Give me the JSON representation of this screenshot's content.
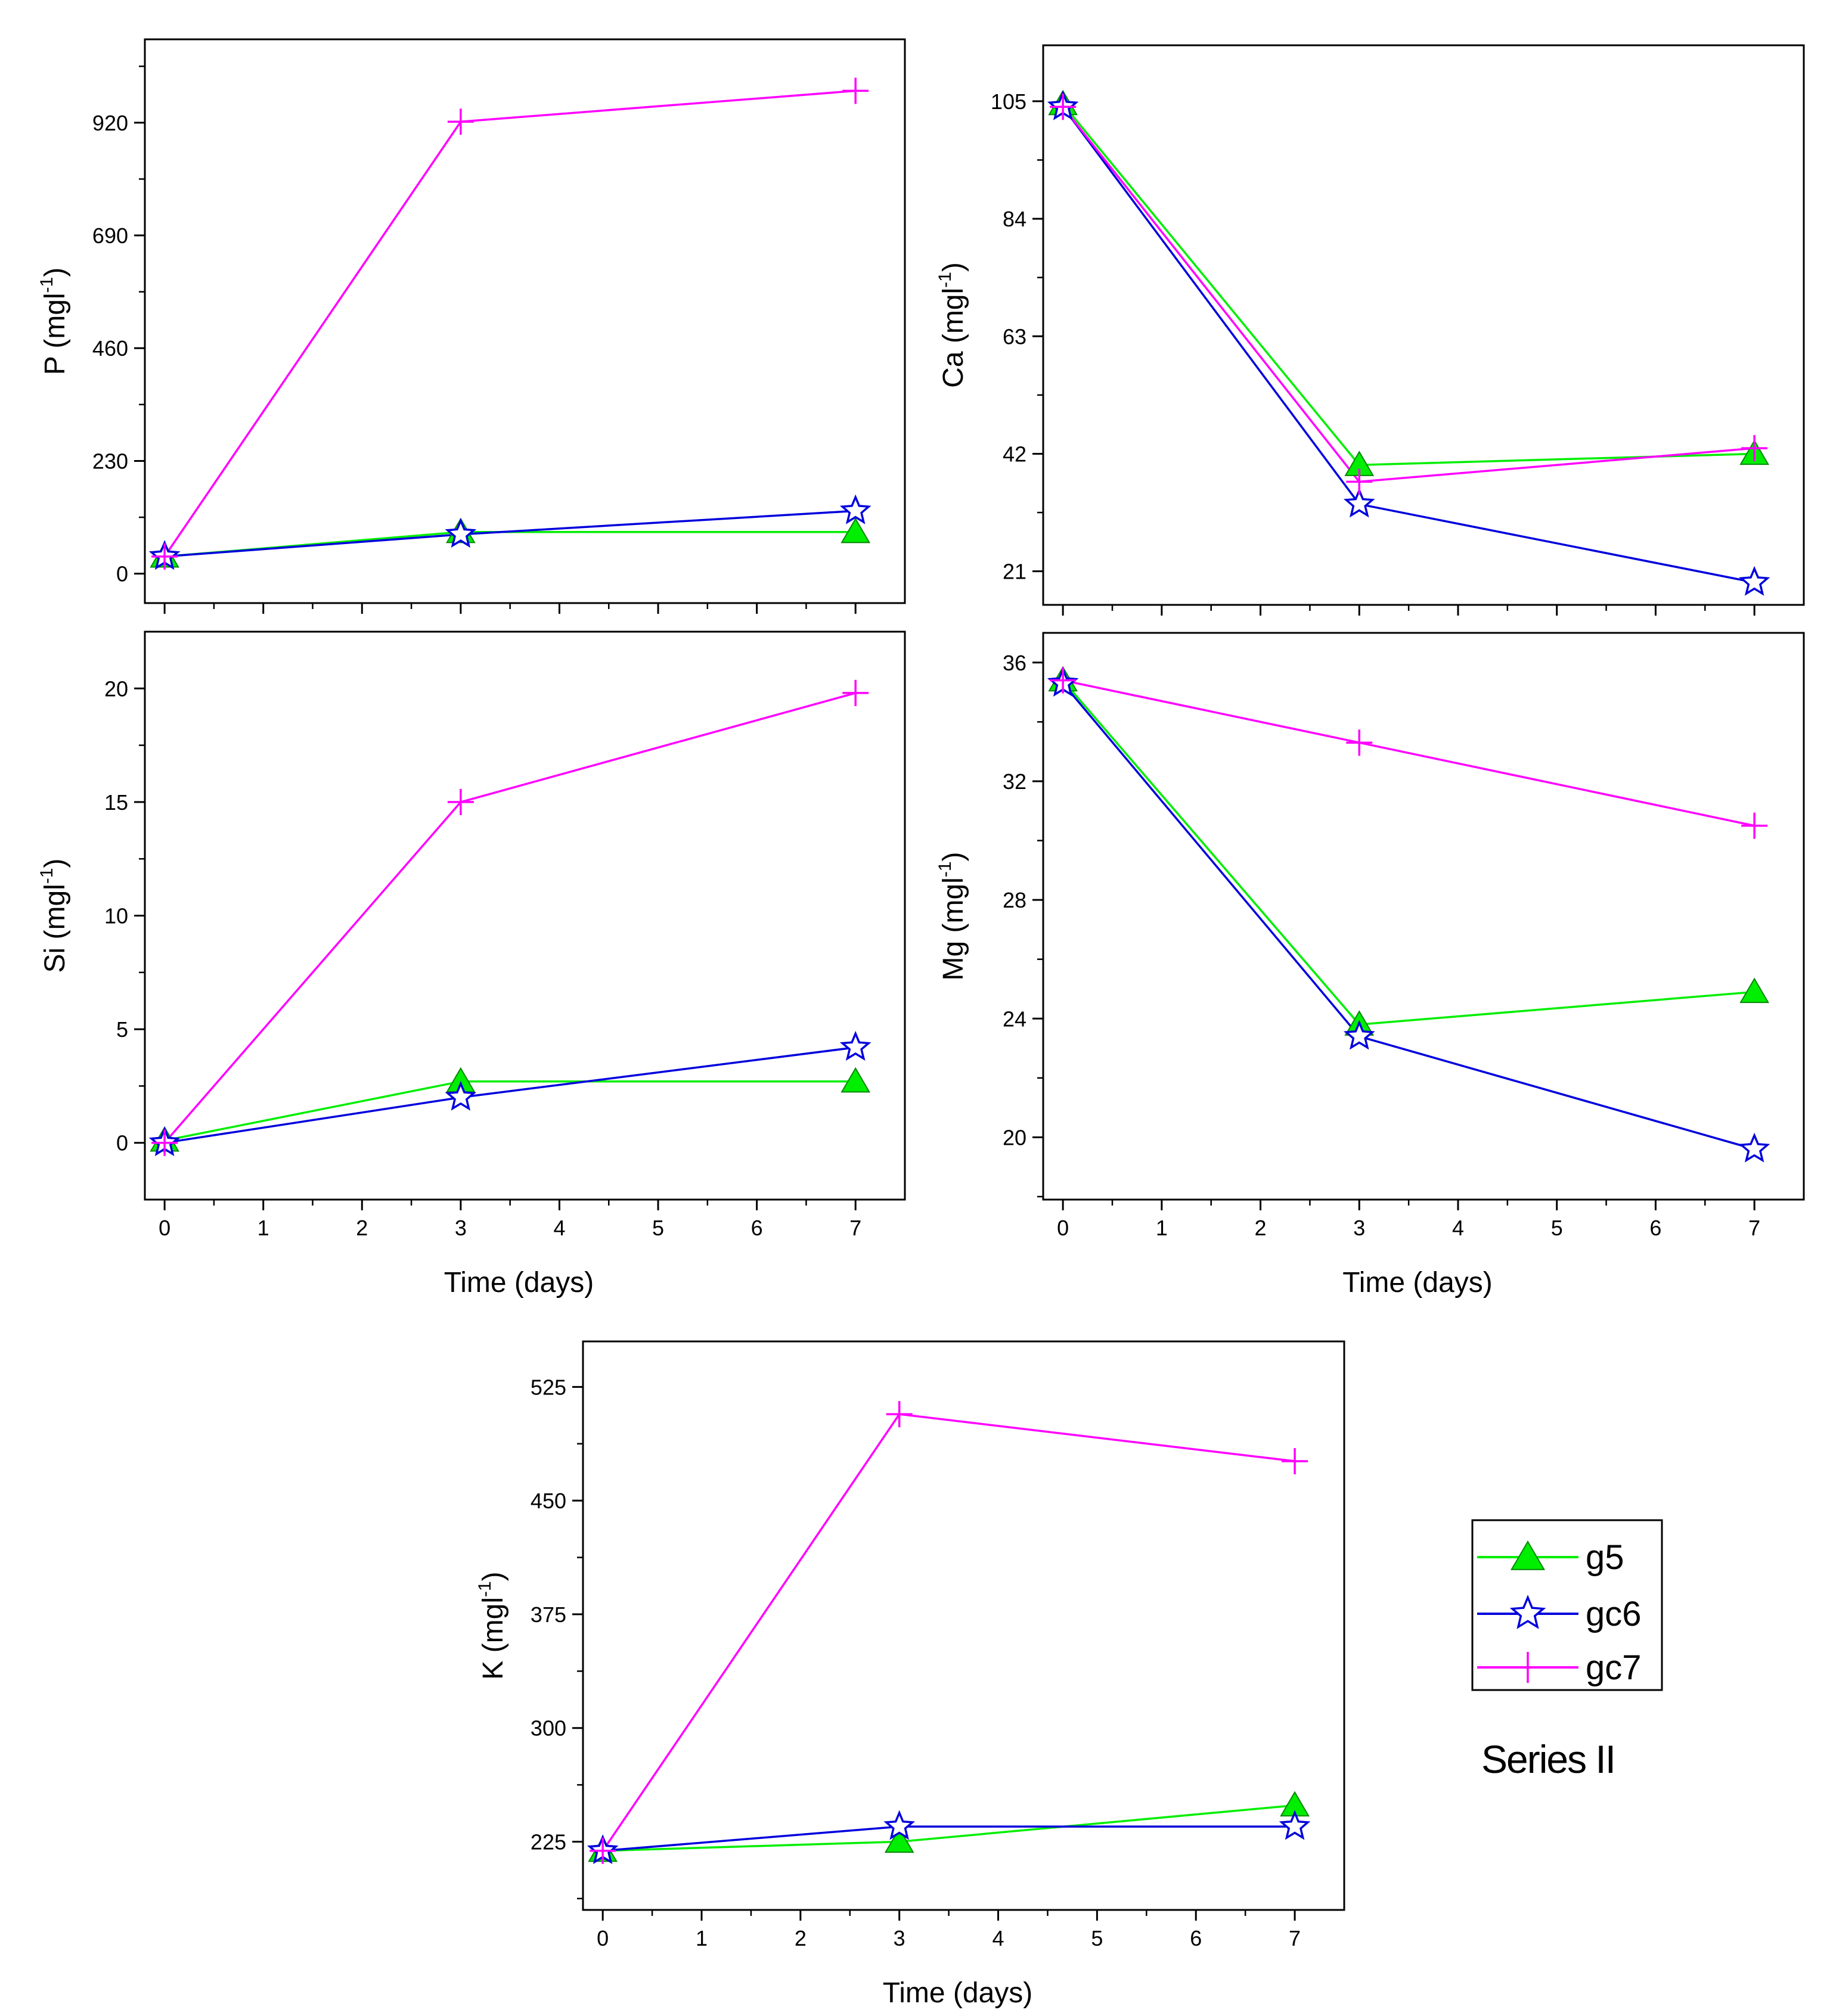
{
  "figure": {
    "series_label": "Series II",
    "legend": [
      {
        "key": "g5",
        "label": "g5"
      },
      {
        "key": "gc6",
        "label": "gc6"
      },
      {
        "key": "gc7",
        "label": "gc7"
      }
    ]
  },
  "styles": {
    "g5": {
      "color": "#00ee00",
      "marker": "triangle"
    },
    "gc6": {
      "color": "#0000dd",
      "marker": "star"
    },
    "gc7": {
      "color": "#ff00ff",
      "marker": "plus"
    }
  },
  "chart_data": [
    {
      "id": "P",
      "type": "line",
      "ylabel_base": "P (mgl",
      "ylabel_sup": "-1",
      "ylabel_close": ")",
      "xlabel": "",
      "x_ticks": [
        0,
        1,
        2,
        3,
        4,
        5,
        6,
        7
      ],
      "x_tick_labels": [],
      "xlim": [
        -0.2,
        7.5
      ],
      "y_ticks": [
        0,
        230,
        460,
        690,
        920
      ],
      "ylim": [
        -60,
        1090
      ],
      "x": [
        0,
        3,
        7
      ],
      "series": [
        {
          "name": "g5",
          "values": [
            35,
            85,
            85
          ]
        },
        {
          "name": "gc6",
          "values": [
            35,
            80,
            128
          ]
        },
        {
          "name": "gc7",
          "values": [
            35,
            922,
            985
          ]
        }
      ]
    },
    {
      "id": "Ca",
      "type": "line",
      "ylabel_base": "Ca (mgl",
      "ylabel_sup": "-1",
      "ylabel_close": ")",
      "xlabel": "",
      "x_ticks": [
        0,
        1,
        2,
        3,
        4,
        5,
        6,
        7
      ],
      "x_tick_labels": [],
      "xlim": [
        -0.2,
        7.5
      ],
      "y_ticks": [
        21,
        42,
        63,
        84,
        105
      ],
      "ylim": [
        15,
        115
      ],
      "x": [
        0,
        3,
        7
      ],
      "series": [
        {
          "name": "g5",
          "values": [
            104.5,
            40,
            42
          ]
        },
        {
          "name": "gc6",
          "values": [
            104,
            33,
            19
          ]
        },
        {
          "name": "gc7",
          "values": [
            104,
            37,
            43
          ]
        }
      ]
    },
    {
      "id": "Si",
      "type": "line",
      "ylabel_base": "Si (mgl",
      "ylabel_sup": "-1",
      "ylabel_close": ")",
      "xlabel": "Time (days)",
      "x_ticks": [
        0,
        1,
        2,
        3,
        4,
        5,
        6,
        7
      ],
      "x_tick_labels": [
        "0",
        "1",
        "2",
        "3",
        "4",
        "5",
        "6",
        "7"
      ],
      "xlim": [
        -0.2,
        7.5
      ],
      "y_ticks": [
        0,
        5,
        10,
        15,
        20
      ],
      "ylim": [
        -2.5,
        22.5
      ],
      "x": [
        0,
        3,
        7
      ],
      "series": [
        {
          "name": "g5",
          "values": [
            0.1,
            2.7,
            2.7
          ]
        },
        {
          "name": "gc6",
          "values": [
            0,
            2.0,
            4.2
          ]
        },
        {
          "name": "gc7",
          "values": [
            0,
            15.0,
            19.8
          ]
        }
      ]
    },
    {
      "id": "Mg",
      "type": "line",
      "ylabel_base": "Mg (mgl",
      "ylabel_sup": "-1",
      "ylabel_close": ")",
      "xlabel": "Time (days)",
      "x_ticks": [
        0,
        1,
        2,
        3,
        4,
        5,
        6,
        7
      ],
      "x_tick_labels": [
        "0",
        "1",
        "2",
        "3",
        "4",
        "5",
        "6",
        "7"
      ],
      "xlim": [
        -0.2,
        7.5
      ],
      "y_ticks": [
        20,
        24,
        28,
        32,
        36
      ],
      "ylim": [
        17.9,
        37.0
      ],
      "x": [
        0,
        3,
        7
      ],
      "series": [
        {
          "name": "g5",
          "values": [
            35.4,
            23.8,
            24.9
          ]
        },
        {
          "name": "gc6",
          "values": [
            35.3,
            23.4,
            19.6
          ]
        },
        {
          "name": "gc7",
          "values": [
            35.4,
            33.3,
            30.5
          ]
        }
      ]
    },
    {
      "id": "K",
      "type": "line",
      "ylabel_base": "K (mgl",
      "ylabel_sup": "-1",
      "ylabel_close": ")",
      "xlabel": "Time (days)",
      "x_ticks": [
        0,
        1,
        2,
        3,
        4,
        5,
        6,
        7
      ],
      "x_tick_labels": [
        "0",
        "1",
        "2",
        "3",
        "4",
        "5",
        "6",
        "7"
      ],
      "xlim": [
        -0.2,
        7.5
      ],
      "y_ticks": [
        225,
        300,
        375,
        450,
        525
      ],
      "ylim": [
        180,
        555
      ],
      "x": [
        0,
        3,
        7
      ],
      "series": [
        {
          "name": "g5",
          "values": [
            219,
            225,
            249
          ]
        },
        {
          "name": "gc6",
          "values": [
            219,
            235,
            235
          ]
        },
        {
          "name": "gc7",
          "values": [
            219,
            507,
            476
          ]
        }
      ]
    }
  ]
}
